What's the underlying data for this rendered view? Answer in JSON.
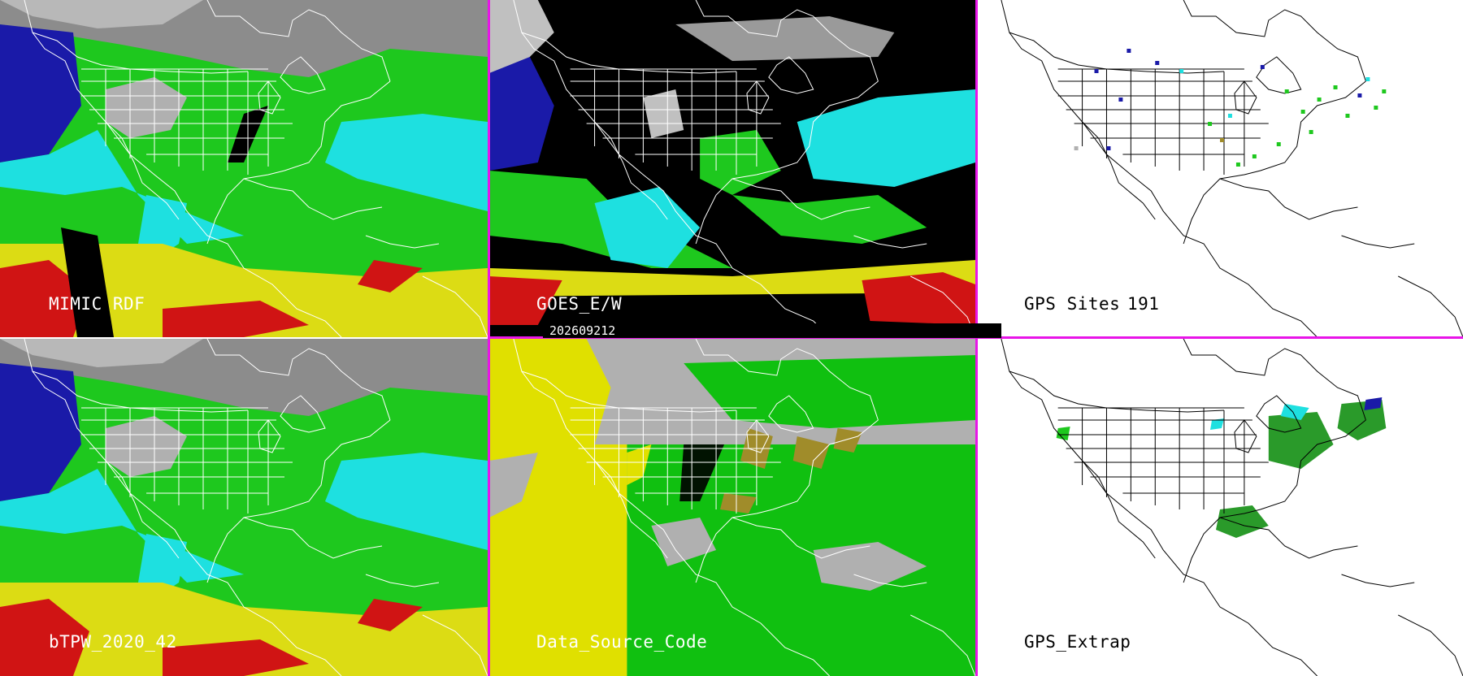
{
  "date_stamp": "202609212",
  "panels": {
    "mimic": {
      "label": "MIMIC RDF"
    },
    "goes": {
      "label": "GOES_E/W"
    },
    "gps_sites": {
      "label": "GPS Sites",
      "count": "191"
    },
    "btpw": {
      "label": "bTPW_2020_42"
    },
    "data_source": {
      "label": "Data_Source_Code"
    },
    "gps_extrap": {
      "label": "GPS_Extrap"
    }
  },
  "colors": {
    "separator": "#e815e8",
    "very_dry": "#1a1aa8",
    "dry": "#1ee0e0",
    "moist": "#1ec81e",
    "humid": "#dcdc14",
    "very_humid": "#d01414",
    "stratosphere_gray": "#9a9a9a",
    "source_gray": "#b0b0b0",
    "source_yellow": "#e0e000",
    "source_green": "#10c010",
    "source_olive": "#a08c2a"
  }
}
